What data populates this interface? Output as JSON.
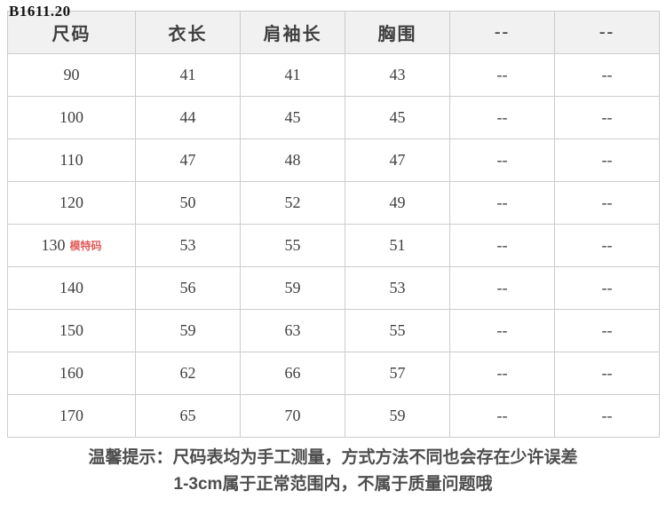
{
  "watermark": "B1611.20",
  "table": {
    "headers": [
      "尺码",
      "衣长",
      "肩袖长",
      "胸围",
      "--",
      "--"
    ],
    "rows": [
      {
        "size": "90",
        "tag": "",
        "values": [
          "41",
          "41",
          "43",
          "--",
          "--"
        ]
      },
      {
        "size": "100",
        "tag": "",
        "values": [
          "44",
          "45",
          "45",
          "--",
          "--"
        ]
      },
      {
        "size": "110",
        "tag": "",
        "values": [
          "47",
          "48",
          "47",
          "--",
          "--"
        ]
      },
      {
        "size": "120",
        "tag": "",
        "values": [
          "50",
          "52",
          "49",
          "--",
          "--"
        ]
      },
      {
        "size": "130",
        "tag": "模特码",
        "values": [
          "53",
          "55",
          "51",
          "--",
          "--"
        ]
      },
      {
        "size": "140",
        "tag": "",
        "values": [
          "56",
          "59",
          "53",
          "--",
          "--"
        ]
      },
      {
        "size": "150",
        "tag": "",
        "values": [
          "59",
          "63",
          "55",
          "--",
          "--"
        ]
      },
      {
        "size": "160",
        "tag": "",
        "values": [
          "62",
          "66",
          "57",
          "--",
          "--"
        ]
      },
      {
        "size": "170",
        "tag": "",
        "values": [
          "65",
          "70",
          "59",
          "--",
          "--"
        ]
      }
    ]
  },
  "note": {
    "line1": "温馨提示：尺码表均为手工测量，方式方法不同也会存在少许误差",
    "line2": "1-3cm属于正常范围内，不属于质量问题哦"
  },
  "colors": {
    "header_bg": "#f1f1f1",
    "border": "#cccccc",
    "text": "#3f3f3f",
    "model_tag_red": "#e05c5a",
    "note_text": "#4d4d4d"
  },
  "chart_data": {
    "type": "table",
    "title": "",
    "columns": [
      "尺码",
      "衣长",
      "肩袖长",
      "胸围",
      "--",
      "--"
    ],
    "rows": [
      [
        "90",
        "41",
        "41",
        "43",
        "--",
        "--"
      ],
      [
        "100",
        "44",
        "45",
        "45",
        "--",
        "--"
      ],
      [
        "110",
        "47",
        "48",
        "47",
        "--",
        "--"
      ],
      [
        "120",
        "50",
        "52",
        "49",
        "--",
        "--"
      ],
      [
        "130 模特码",
        "53",
        "55",
        "51",
        "--",
        "--"
      ],
      [
        "140",
        "56",
        "59",
        "53",
        "--",
        "--"
      ],
      [
        "150",
        "59",
        "63",
        "55",
        "--",
        "--"
      ],
      [
        "160",
        "62",
        "66",
        "57",
        "--",
        "--"
      ],
      [
        "170",
        "65",
        "70",
        "59",
        "--",
        "--"
      ]
    ],
    "annotations": [
      "模特码 marks size 130 as the model's size",
      "温馨提示：尺码表均为手工测量，方式方法不同也会存在少许误差 1-3cm属于正常范围内，不属于质量问题哦"
    ]
  }
}
